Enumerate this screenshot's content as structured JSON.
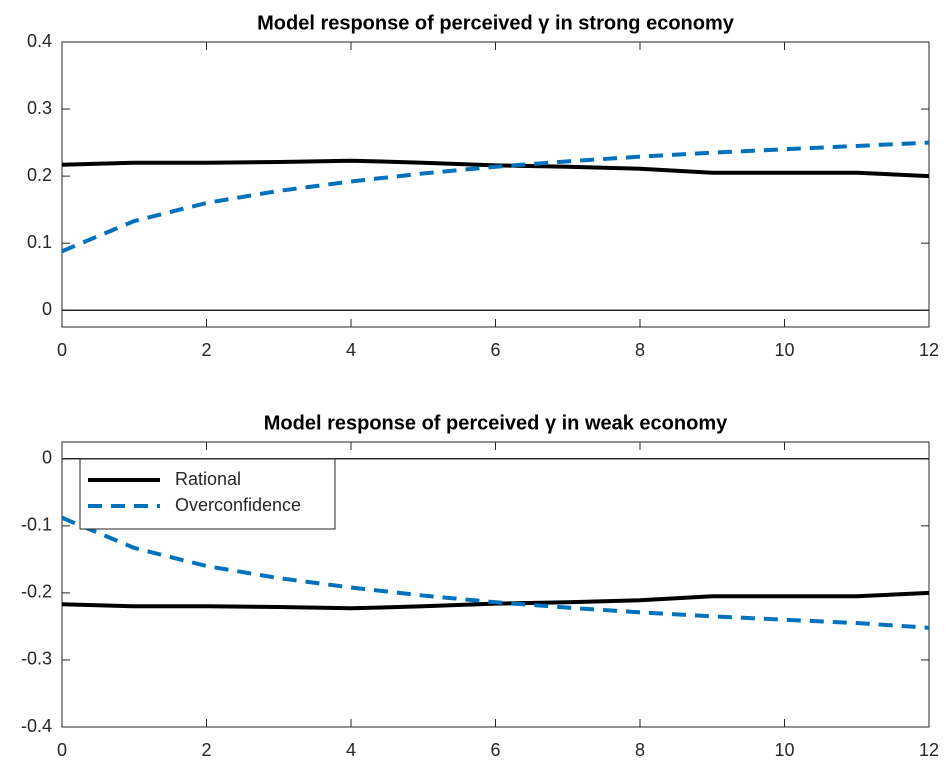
{
  "chart_data": [
    {
      "type": "line",
      "title": "Model response of perceived γ in strong economy",
      "x": [
        0,
        1,
        2,
        3,
        4,
        5,
        6,
        7,
        8,
        9,
        10,
        11,
        12
      ],
      "series": [
        {
          "color": "#000000",
          "style": "solid",
          "values": [
            0.217,
            0.22,
            0.22,
            0.221,
            0.223,
            0.22,
            0.216,
            0.214,
            0.211,
            0.205,
            0.205,
            0.205,
            0.2
          ]
        },
        {
          "color": "#0072bd",
          "style": "dashed",
          "values": [
            0.088,
            0.133,
            0.16,
            0.178,
            0.192,
            0.204,
            0.214,
            0.222,
            0.229,
            0.235,
            0.24,
            0.245,
            0.25
          ]
        }
      ],
      "xlim": [
        0,
        12
      ],
      "ylim": [
        -0.025,
        0.4
      ],
      "xticks": [
        0,
        2,
        4,
        6,
        8,
        10,
        12
      ],
      "yticks": [
        0,
        0.1,
        0.2,
        0.3,
        0.4
      ]
    },
    {
      "type": "line",
      "title": "Model response of perceived γ in weak economy",
      "x": [
        0,
        1,
        2,
        3,
        4,
        5,
        6,
        7,
        8,
        9,
        10,
        11,
        12
      ],
      "series": [
        {
          "name": "Rational",
          "color": "#000000",
          "style": "solid",
          "values": [
            -0.217,
            -0.22,
            -0.22,
            -0.221,
            -0.223,
            -0.22,
            -0.216,
            -0.214,
            -0.211,
            -0.205,
            -0.205,
            -0.205,
            -0.2
          ]
        },
        {
          "name": "Overconfidence",
          "color": "#0072bd",
          "style": "dashed",
          "values": [
            -0.088,
            -0.133,
            -0.16,
            -0.178,
            -0.192,
            -0.204,
            -0.214,
            -0.222,
            -0.229,
            -0.235,
            -0.24,
            -0.245,
            -0.252
          ]
        }
      ],
      "xlim": [
        0,
        12
      ],
      "ylim": [
        -0.4,
        0.025
      ],
      "xticks": [
        0,
        2,
        4,
        6,
        8,
        10,
        12
      ],
      "yticks": [
        -0.4,
        -0.3,
        -0.2,
        -0.1,
        0
      ],
      "legend": "northwest"
    }
  ]
}
